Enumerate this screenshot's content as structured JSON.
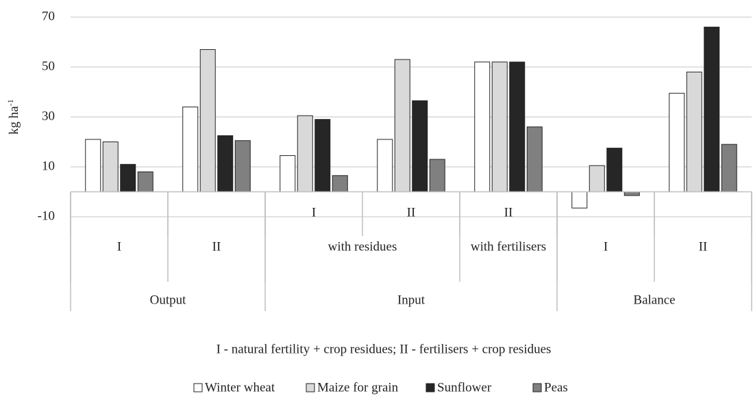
{
  "chart_data": {
    "type": "bar",
    "y_label": "kg ha",
    "y_label_superscript": "-1",
    "note": "I - natural fertility + crop residues; II - fertilisers + crop residues",
    "categories": [
      null,
      null,
      "I",
      "II",
      "II",
      null,
      null
    ],
    "category_groups": [
      {
        "label": "I",
        "span": 1
      },
      {
        "label": "II",
        "span": 1
      },
      {
        "label": "with residues",
        "span": 2
      },
      {
        "label": "with fertilisers",
        "span": 1
      },
      {
        "label": "I",
        "span": 1
      },
      {
        "label": "II",
        "span": 1
      }
    ],
    "category_supergroups": [
      {
        "label": "Output",
        "span": 2
      },
      {
        "label": "Input",
        "span": 3
      },
      {
        "label": "Balance",
        "span": 2
      }
    ],
    "series": [
      {
        "name": "Winter wheat",
        "color": "#ffffff",
        "values": [
          21,
          34,
          14.5,
          21,
          52,
          -6.5,
          39.5
        ]
      },
      {
        "name": "Maize for grain",
        "color": "#d9d9d9",
        "values": [
          20,
          57,
          30.5,
          53,
          52,
          10.5,
          48
        ]
      },
      {
        "name": "Sunflower",
        "color": "#262626",
        "values": [
          11,
          22.5,
          29,
          36.5,
          52,
          17.5,
          66
        ]
      },
      {
        "name": "Peas",
        "color": "#808080",
        "values": [
          8,
          20.5,
          6.5,
          13,
          26,
          -1.5,
          19
        ]
      }
    ],
    "ylim": [
      -10,
      70
    ],
    "yticks": [
      -10,
      10,
      30,
      50,
      70
    ],
    "grid": true,
    "legend": "bottom"
  }
}
